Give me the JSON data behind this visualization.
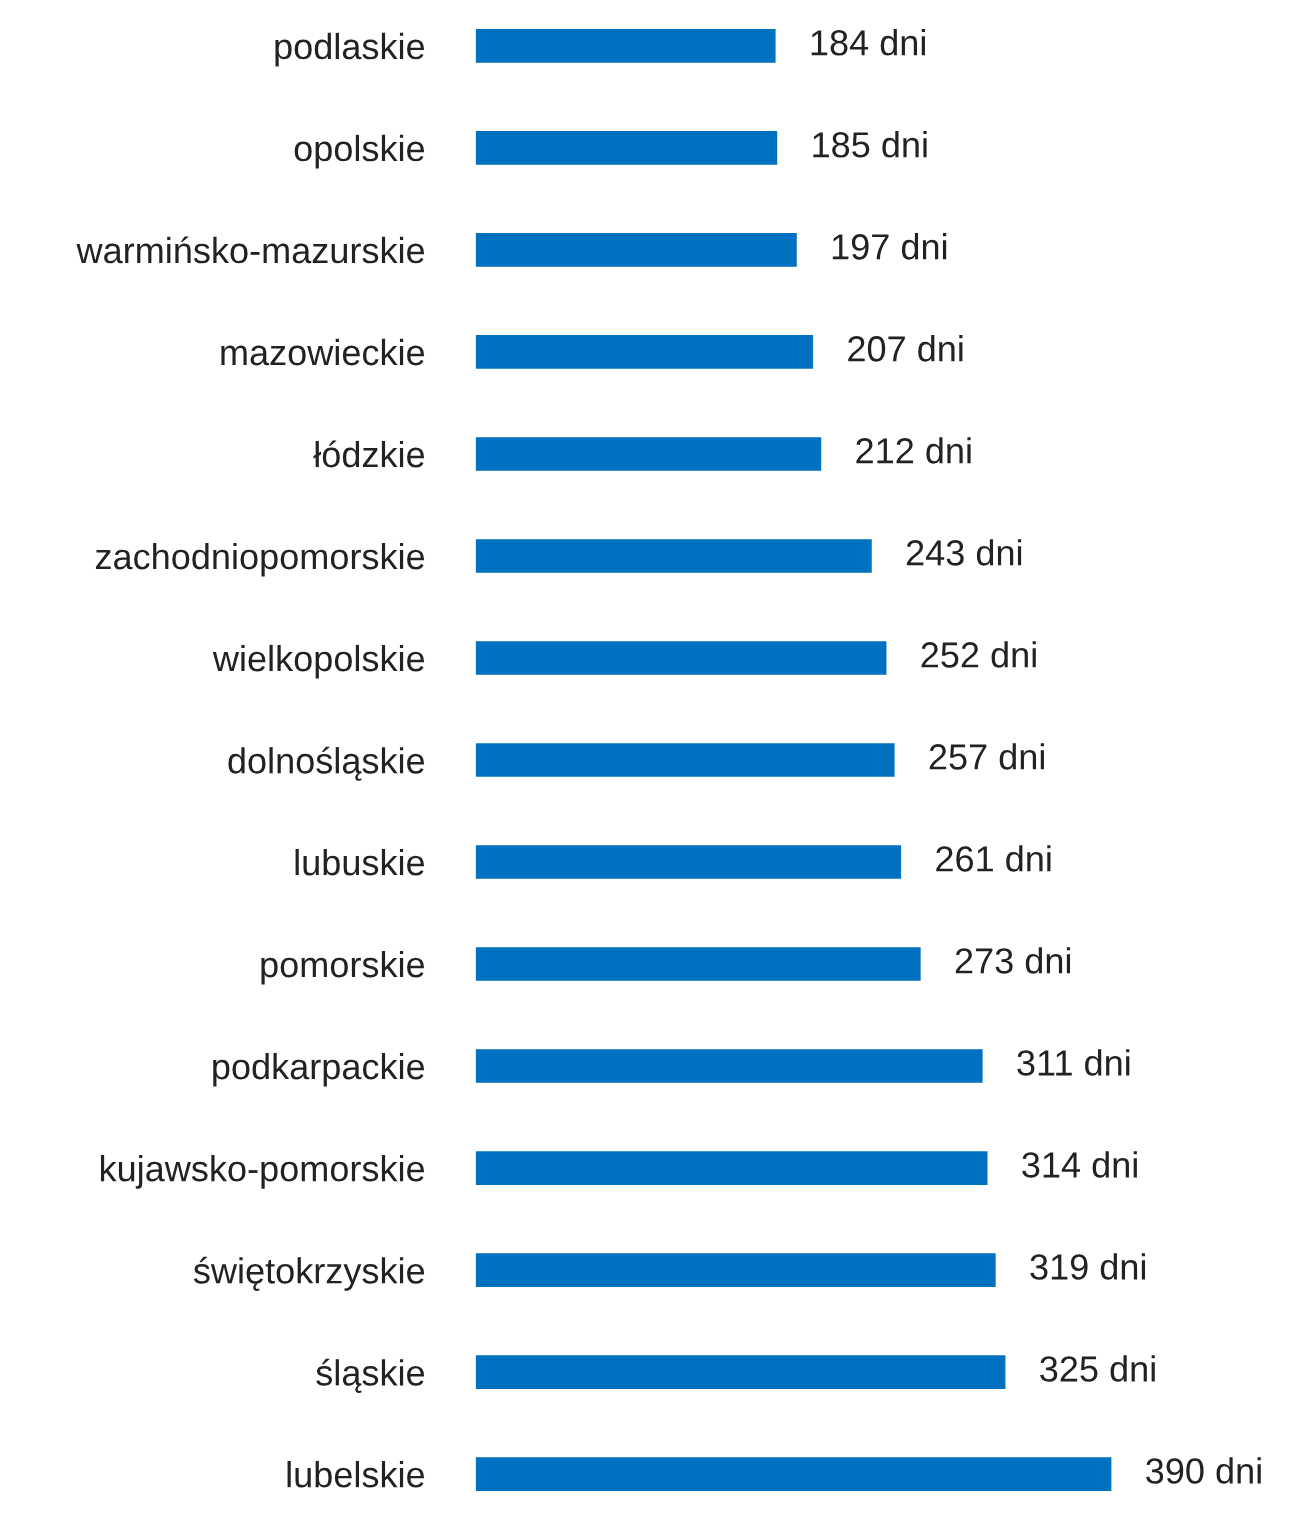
{
  "chart_data": {
    "type": "bar",
    "orientation": "horizontal",
    "color": "#0070c0",
    "categories": [
      "podlaskie",
      "opolskie",
      "warmińsko-mazurskie",
      "mazowieckie",
      "łódzkie",
      "zachodniopomorskie",
      "wielkopolskie",
      "dolnośląskie",
      "lubuskie",
      "pomorskie",
      "podkarpackie",
      "kujawsko-pomorskie",
      "świętokrzyskie",
      "śląskie",
      "lubelskie"
    ],
    "values": [
      184,
      185,
      197,
      207,
      212,
      243,
      252,
      257,
      261,
      273,
      311,
      314,
      319,
      325,
      390
    ],
    "value_labels": [
      "184 dni",
      "185 dni",
      "197 dni",
      "207 dni",
      "212 dni",
      "243 dni",
      "252 dni",
      "257 dni",
      "261 dni",
      "273 dni",
      "311 dni",
      "314 dni",
      "319 dni",
      "325 dni",
      "390 dni"
    ]
  }
}
